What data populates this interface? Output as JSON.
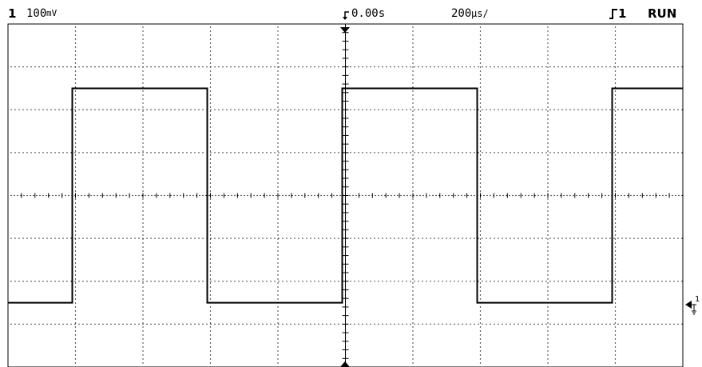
{
  "status": {
    "channel_number": "1",
    "volts_per_div": "100",
    "volts_unit_symbol": "mV",
    "trigger_delay": "0.00s",
    "time_per_div": "200",
    "time_unit_symbol": "µs/",
    "trigger_source": "1",
    "run_state": "RUN"
  },
  "marker": {
    "ground_ref_label": "1"
  },
  "trace": {
    "color": "#000000",
    "grid_color": "#000000",
    "duty_cycle": 0.5,
    "period_divisions": 4,
    "high_level_divisions": 2.5,
    "low_level_divisions": -2.5
  }
}
